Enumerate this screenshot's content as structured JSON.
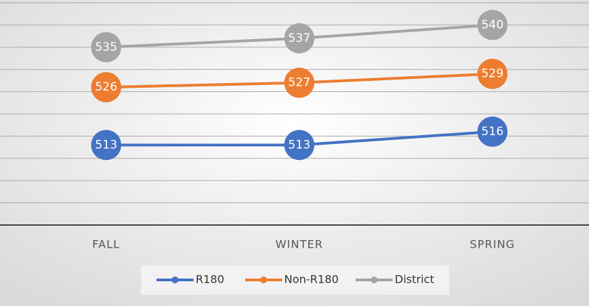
{
  "chart_data": {
    "type": "line",
    "categories": [
      "FALL",
      "WINTER",
      "SPRING"
    ],
    "series": [
      {
        "name": "R180",
        "color": "#4472c4",
        "values": [
          513,
          513,
          516
        ]
      },
      {
        "name": "Non-R180",
        "color": "#ed7d31",
        "values": [
          526,
          527,
          529
        ]
      },
      {
        "name": "District",
        "color": "#a5a5a5",
        "values": [
          535,
          537,
          540
        ]
      }
    ],
    "ylim": [
      495,
      545
    ],
    "yticks": [
      500,
      505,
      510,
      515,
      520,
      525,
      530,
      535,
      540,
      545
    ],
    "grid": true,
    "legend": "bottom"
  }
}
